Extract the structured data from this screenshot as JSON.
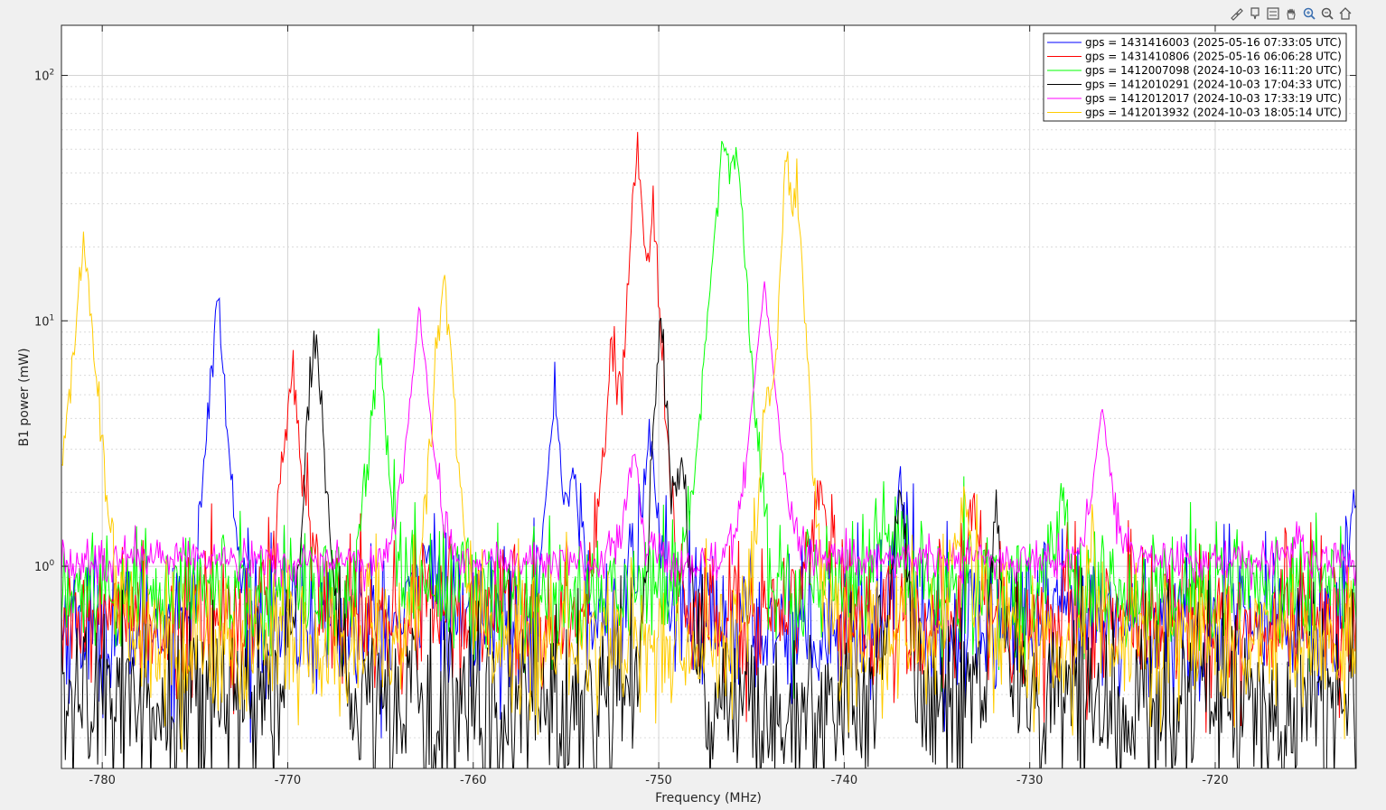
{
  "toolbar": {
    "items": [
      {
        "name": "brush-icon"
      },
      {
        "name": "datatip-icon"
      },
      {
        "name": "legend-toggle-icon"
      },
      {
        "name": "pan-icon"
      },
      {
        "name": "zoom-in-icon"
      },
      {
        "name": "zoom-out-icon"
      },
      {
        "name": "home-icon"
      }
    ]
  },
  "chart_data": {
    "type": "line",
    "xlabel": "Frequency (MHz)",
    "ylabel": "B1 power (mW)",
    "xlim": [
      -782.2,
      -712.4
    ],
    "ylim": [
      0.15,
      160
    ],
    "yscale": "log",
    "grid": true,
    "legend_location": "top-right",
    "x_ticks": [
      -780,
      -770,
      -760,
      -750,
      -740,
      -730,
      -720
    ],
    "x_tick_labels": [
      "-780",
      "-770",
      "-760",
      "-750",
      "-740",
      "-730",
      "-720"
    ],
    "y_ticks": [
      1,
      10,
      100
    ],
    "y_tick_labels": [
      {
        "base": "10",
        "exp": "0"
      },
      {
        "base": "10",
        "exp": "1"
      },
      {
        "base": "10",
        "exp": "2"
      }
    ],
    "series": [
      {
        "name": "gps = 1431416003 (2025-05-16 07:33:05 UTC)",
        "color": "#0000ff",
        "baseline": 0.58,
        "noise": 0.35,
        "peaks": [
          [
            -773.8,
            13,
            0.7
          ],
          [
            -762.5,
            1.4,
            0.7
          ],
          [
            -755.6,
            5.5,
            0.6
          ],
          [
            -754.6,
            2.8,
            0.5
          ],
          [
            -750.5,
            3.5,
            0.8
          ],
          [
            -737.0,
            2.4,
            0.6
          ],
          [
            -712.5,
            1.9,
            0.8
          ]
        ],
        "control": [
          [
            -782,
            0.62
          ],
          [
            -774,
            13
          ],
          [
            -768,
            0.62
          ],
          [
            -755.2,
            7.5
          ],
          [
            -745,
            0.6
          ],
          [
            -737,
            2.4
          ],
          [
            -712.4,
            2.0
          ]
        ]
      },
      {
        "name": "gps = 1431410806 (2025-05-16 06:06:28 UTC)",
        "color": "#ff0000",
        "baseline": 0.62,
        "noise": 0.35,
        "peaks": [
          [
            -769.8,
            7.0,
            0.8
          ],
          [
            -751.2,
            55,
            0.55
          ],
          [
            -750.3,
            28,
            0.6
          ],
          [
            -752.5,
            8,
            0.7
          ],
          [
            -741.3,
            2.2,
            0.8
          ],
          [
            -733.0,
            2.0,
            0.6
          ]
        ],
        "control": [
          [
            -782,
            0.7
          ],
          [
            -769.8,
            7.1
          ],
          [
            -751.2,
            58
          ],
          [
            -750.4,
            30
          ],
          [
            -741.3,
            2.3
          ],
          [
            -733,
            2.2
          ],
          [
            -712.4,
            0.6
          ]
        ]
      },
      {
        "name": "gps = 1412007098 (2024-10-03 16:11:20 UTC)",
        "color": "#00ff00",
        "baseline": 0.8,
        "noise": 0.3,
        "peaks": [
          [
            -765.1,
            8,
            0.75
          ],
          [
            -746.5,
            52,
            0.9
          ],
          [
            -745.8,
            40,
            0.7
          ],
          [
            -737.5,
            1.9,
            1.2
          ],
          [
            -728.3,
            2.2,
            0.6
          ]
        ],
        "control": [
          [
            -782,
            1.4
          ],
          [
            -765.1,
            8.2
          ],
          [
            -746.1,
            58
          ],
          [
            -737.5,
            1.9
          ],
          [
            -728.3,
            2.3
          ],
          [
            -712.4,
            0.62
          ]
        ]
      },
      {
        "name": "gps = 1412010291 (2024-10-03 17:04:33 UTC)",
        "color": "#000000",
        "baseline": 0.28,
        "noise": 0.45,
        "peaks": [
          [
            -768.5,
            9.5,
            0.7
          ],
          [
            -749.9,
            10,
            0.6
          ],
          [
            -748.8,
            3,
            0.6
          ],
          [
            -737.0,
            2.5,
            0.6
          ],
          [
            -731.8,
            1.8,
            0.5
          ]
        ],
        "control": [
          [
            -782,
            0.28
          ],
          [
            -768.5,
            9.6
          ],
          [
            -749.9,
            10.5
          ],
          [
            -737,
            2.5
          ],
          [
            -731.8,
            1.85
          ],
          [
            -712.4,
            0.28
          ]
        ]
      },
      {
        "name": "gps = 1412012017 (2024-10-03 17:33:19 UTC)",
        "color": "#ff00ff",
        "baseline": 1.05,
        "noise": 0.1,
        "peaks": [
          [
            -762.9,
            11.5,
            0.85
          ],
          [
            -751.4,
            2.9,
            0.7
          ],
          [
            -744.3,
            14.5,
            0.9
          ],
          [
            -726.1,
            4.5,
            0.8
          ],
          [
            -715.5,
            1.35,
            0.6
          ]
        ],
        "control": [
          [
            -782,
            3.0
          ],
          [
            -762.9,
            11.8
          ],
          [
            -751.4,
            2.9
          ],
          [
            -744.3,
            15
          ],
          [
            -726.1,
            4.6
          ],
          [
            -712.4,
            1.0
          ]
        ]
      },
      {
        "name": "gps = 1412013932 (2024-10-03 18:05:14 UTC)",
        "color": "#ffcc00",
        "baseline": 0.5,
        "noise": 0.35,
        "peaks": [
          [
            -781.0,
            22,
            0.9
          ],
          [
            -761.6,
            15,
            0.8
          ],
          [
            -743.1,
            50,
            0.5
          ],
          [
            -742.5,
            30,
            0.6
          ],
          [
            -744.2,
            5,
            0.6
          ],
          [
            -733.5,
            1.9,
            1.0
          ],
          [
            -726.6,
            1.3,
            0.6
          ]
        ],
        "control": [
          [
            -782,
            7.5
          ],
          [
            -781,
            22
          ],
          [
            -761.6,
            15
          ],
          [
            -743.1,
            52
          ],
          [
            -733.5,
            1.9
          ],
          [
            -712.4,
            0.45
          ]
        ]
      }
    ]
  }
}
